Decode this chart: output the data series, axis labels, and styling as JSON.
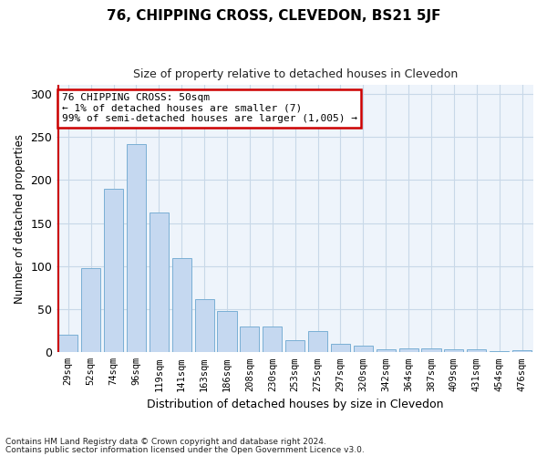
{
  "title": "76, CHIPPING CROSS, CLEVEDON, BS21 5JF",
  "subtitle": "Size of property relative to detached houses in Clevedon",
  "xlabel": "Distribution of detached houses by size in Clevedon",
  "ylabel": "Number of detached properties",
  "footnote1": "Contains HM Land Registry data © Crown copyright and database right 2024.",
  "footnote2": "Contains public sector information licensed under the Open Government Licence v3.0.",
  "bar_labels": [
    "29sqm",
    "52sqm",
    "74sqm",
    "96sqm",
    "119sqm",
    "141sqm",
    "163sqm",
    "186sqm",
    "208sqm",
    "230sqm",
    "253sqm",
    "275sqm",
    "297sqm",
    "320sqm",
    "342sqm",
    "364sqm",
    "387sqm",
    "409sqm",
    "431sqm",
    "454sqm",
    "476sqm"
  ],
  "bar_values": [
    20,
    98,
    190,
    242,
    162,
    109,
    62,
    48,
    30,
    30,
    14,
    25,
    10,
    8,
    4,
    5,
    5,
    4,
    3,
    1,
    2
  ],
  "bar_color": "#c5d8f0",
  "bar_edge_color": "#7aafd4",
  "grid_color": "#c8d8e8",
  "background_color": "#eef4fb",
  "annotation_text": "76 CHIPPING CROSS: 50sqm\n← 1% of detached houses are smaller (7)\n99% of semi-detached houses are larger (1,005) →",
  "annotation_box_color": "#cc0000",
  "ylim": [
    0,
    310
  ],
  "yticks": [
    0,
    50,
    100,
    150,
    200,
    250,
    300
  ]
}
